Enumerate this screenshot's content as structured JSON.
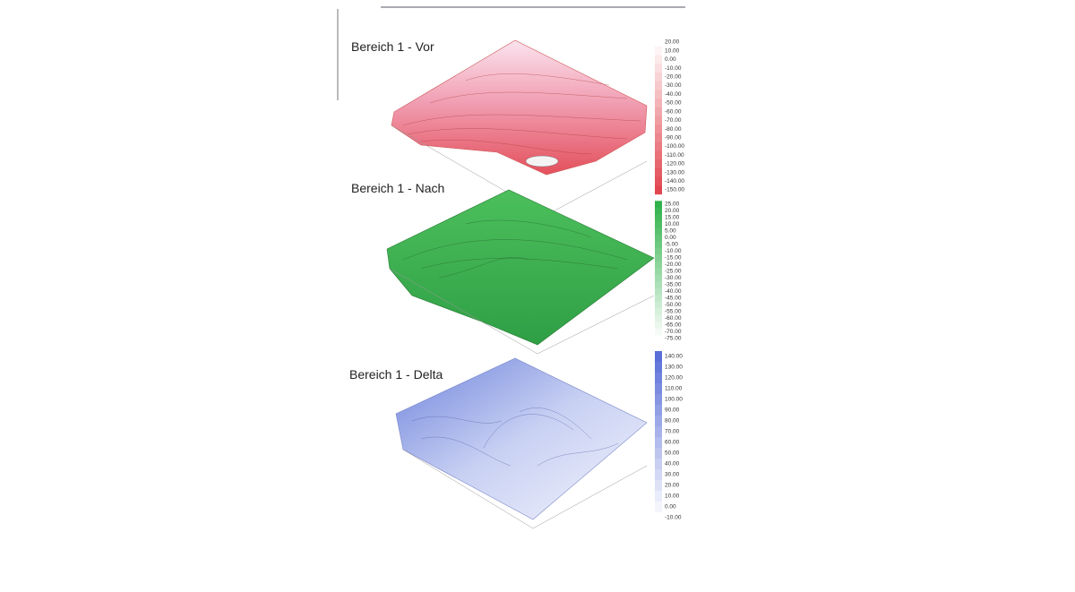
{
  "plots": [
    {
      "title": "Bereich 1 - Vor",
      "legend": [
        "20.00",
        "10.00",
        "0.00",
        "-10.00",
        "-20.00",
        "-30.00",
        "-40.00",
        "-50.00",
        "-60.00",
        "-70.00",
        "-80.00",
        "-90.00",
        "-100.00",
        "-110.00",
        "-120.00",
        "-130.00",
        "-140.00",
        "-150.00"
      ]
    },
    {
      "title": "Bereich 1 - Nach",
      "legend": [
        "25.00",
        "20.00",
        "15.00",
        "10.00",
        "5.00",
        "0.00",
        "-5.00",
        "-10.00",
        "-15.00",
        "-20.00",
        "-25.00",
        "-30.00",
        "-35.00",
        "-40.00",
        "-45.00",
        "-50.00",
        "-55.00",
        "-60.00",
        "-65.00",
        "-70.00",
        "-75.00"
      ]
    },
    {
      "title": "Bereich 1 - Delta",
      "legend": [
        "140.00",
        "130.00",
        "120.00",
        "110.00",
        "100.00",
        "90.00",
        "80.00",
        "70.00",
        "60.00",
        "50.00",
        "40.00",
        "30.00",
        "20.00",
        "10.00",
        "0.00",
        "-10.00"
      ]
    }
  ]
}
